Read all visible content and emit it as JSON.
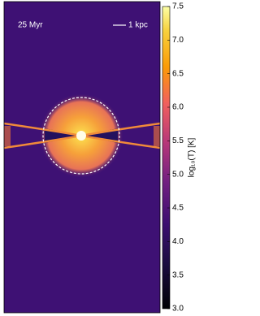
{
  "chart_data": {
    "type": "image",
    "time_label": "25 Myr",
    "scale_bar_label": "1 kpc",
    "colorbar": {
      "label": "log₁₀(T) [K]",
      "clim": [
        3.0,
        7.5
      ],
      "ticks": [
        {
          "value": 3,
          "label": "3.0"
        },
        {
          "value": 3.5,
          "label": "3.5"
        },
        {
          "value": 4,
          "label": "4.0"
        },
        {
          "value": 4.5,
          "label": "4.5"
        },
        {
          "value": 5,
          "label": "5.0"
        },
        {
          "value": 5.5,
          "label": "5.5"
        },
        {
          "value": 6,
          "label": "6.0"
        },
        {
          "value": 6.5,
          "label": "6.5"
        },
        {
          "value": 7,
          "label": "7.0"
        },
        {
          "value": 7.5,
          "label": "7.5"
        }
      ]
    }
  }
}
